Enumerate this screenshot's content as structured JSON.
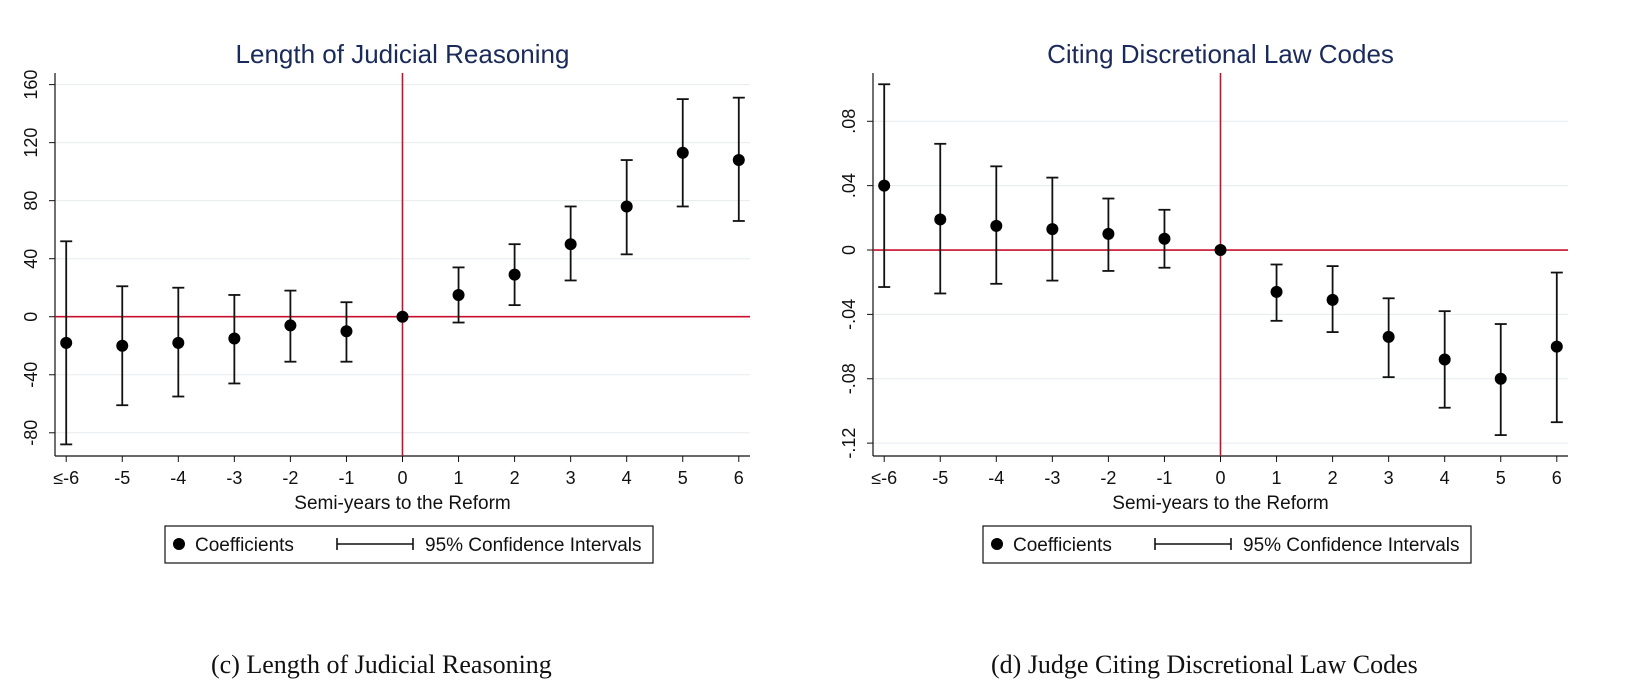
{
  "chart_data": [
    {
      "type": "scatter",
      "title": "Length of Judicial Reasoning",
      "xlabel": "Semi-years to the Reform",
      "ylabel": "",
      "x_tick_labels": [
        "≤-6",
        "-5",
        "-4",
        "-3",
        "-2",
        "-1",
        "0",
        "1",
        "2",
        "3",
        "4",
        "5",
        "6"
      ],
      "x": [
        -6,
        -5,
        -4,
        -3,
        -2,
        -1,
        0,
        1,
        2,
        3,
        4,
        5,
        6
      ],
      "xlim": [
        -6.2,
        6.2
      ],
      "y_ticks": [
        -80,
        -40,
        0,
        40,
        80,
        120,
        160
      ],
      "y_tick_labels": [
        "-80",
        "-40",
        "0",
        "40",
        "80",
        "120",
        "160"
      ],
      "ylim": [
        -96,
        168
      ],
      "series": [
        {
          "name": "Coefficients",
          "values": [
            -18,
            -20,
            -18,
            -15,
            -6,
            -10,
            0,
            15,
            29,
            50,
            76,
            113,
            108
          ],
          "ci_low": [
            -88,
            -61,
            -55,
            -46,
            -31,
            -31,
            0,
            -4,
            8,
            25,
            43,
            76,
            66
          ],
          "ci_high": [
            52,
            21,
            20,
            15,
            18,
            10,
            0,
            34,
            50,
            76,
            108,
            150,
            151
          ]
        }
      ],
      "reference_lines": {
        "x": 0,
        "y": 0,
        "color": "#c8102e"
      },
      "legend": {
        "placement": "bottom",
        "items": [
          "Coefficients",
          "95% Confidence Intervals"
        ]
      },
      "grid": true,
      "title_color": "#1a2a5a"
    },
    {
      "type": "scatter",
      "title": "Citing Discretional Law Codes",
      "xlabel": "Semi-years to the Reform",
      "ylabel": "",
      "x_tick_labels": [
        "≤-6",
        "-5",
        "-4",
        "-3",
        "-2",
        "-1",
        "0",
        "1",
        "2",
        "3",
        "4",
        "5",
        "6"
      ],
      "x": [
        -6,
        -5,
        -4,
        -3,
        -2,
        -1,
        0,
        1,
        2,
        3,
        4,
        5,
        6
      ],
      "xlim": [
        -6.2,
        6.2
      ],
      "y_ticks": [
        -0.12,
        -0.08,
        -0.04,
        0,
        0.04,
        0.08
      ],
      "y_tick_labels": [
        "-.12",
        "-.08",
        "-.04",
        "0",
        ".04",
        ".08"
      ],
      "ylim": [
        -0.128,
        0.11
      ],
      "series": [
        {
          "name": "Coefficients",
          "values": [
            0.04,
            0.019,
            0.015,
            0.013,
            0.01,
            0.007,
            0,
            -0.026,
            -0.031,
            -0.054,
            -0.068,
            -0.08,
            -0.06
          ],
          "ci_low": [
            -0.023,
            -0.027,
            -0.021,
            -0.019,
            -0.013,
            -0.011,
            0,
            -0.044,
            -0.051,
            -0.079,
            -0.098,
            -0.115,
            -0.107
          ],
          "ci_high": [
            0.103,
            0.066,
            0.052,
            0.045,
            0.032,
            0.025,
            0,
            -0.009,
            -0.01,
            -0.03,
            -0.038,
            -0.046,
            -0.014
          ]
        }
      ],
      "reference_lines": {
        "x": 0,
        "y": 0,
        "color": "#c8102e"
      },
      "legend": {
        "placement": "bottom",
        "items": [
          "Coefficients",
          "95% Confidence Intervals"
        ]
      },
      "grid": true,
      "title_color": "#1a2a5a"
    }
  ],
  "captions": {
    "c": "(c) Length of Judicial Reasoning",
    "d": "(d) Judge Citing Discretional Law Codes"
  }
}
